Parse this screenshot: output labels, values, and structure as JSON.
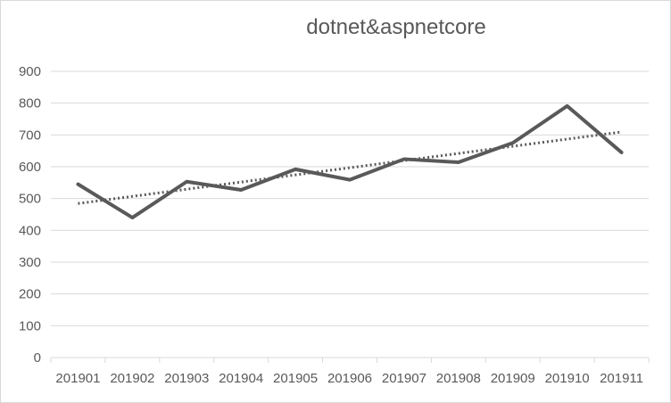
{
  "chart_data": {
    "type": "line",
    "title": "dotnet&aspnetcore",
    "categories": [
      "201901",
      "201902",
      "201903",
      "201904",
      "201905",
      "201906",
      "201907",
      "201908",
      "201909",
      "201910",
      "201911"
    ],
    "series": [
      {
        "values": [
          545,
          440,
          553,
          527,
          592,
          559,
          624,
          614,
          675,
          791,
          645
        ],
        "color": "#595959",
        "style": "solid"
      }
    ],
    "trendline": {
      "type": "linear",
      "style": "dotted",
      "color": "#595959"
    },
    "ylim": [
      0,
      900
    ],
    "yticks": [
      0,
      100,
      200,
      300,
      400,
      500,
      600,
      700,
      800,
      900
    ],
    "ytick_labels": [
      "0",
      "100",
      "200",
      "300",
      "400",
      "500",
      "600",
      "700",
      "800",
      "900"
    ],
    "xlabel": "",
    "ylabel": "",
    "grid": true,
    "legend": "none"
  }
}
